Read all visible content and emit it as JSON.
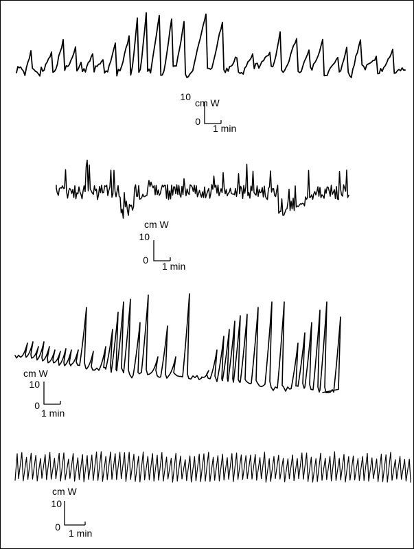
{
  "figure": {
    "panels": [
      {
        "scale": {
          "unit_label": "cm W",
          "max_label": "10",
          "min_label": "0",
          "time_label": "1 min"
        },
        "trace": {
          "style": "irregular-large"
        }
      },
      {
        "scale": {
          "unit_label": "cm W",
          "max_label": "10",
          "min_label": "0",
          "time_label": "1 min"
        },
        "trace": {
          "style": "irregular-noisy"
        }
      },
      {
        "scale": {
          "unit_label": "cm W",
          "max_label": "10",
          "min_label": "0",
          "time_label": "1 min"
        },
        "trace": {
          "style": "rising-spikes"
        }
      },
      {
        "scale": {
          "unit_label": "cm W",
          "max_label": "10",
          "min_label": "0",
          "time_label": "1 min"
        },
        "trace": {
          "style": "regular-high-frequency"
        }
      }
    ]
  }
}
